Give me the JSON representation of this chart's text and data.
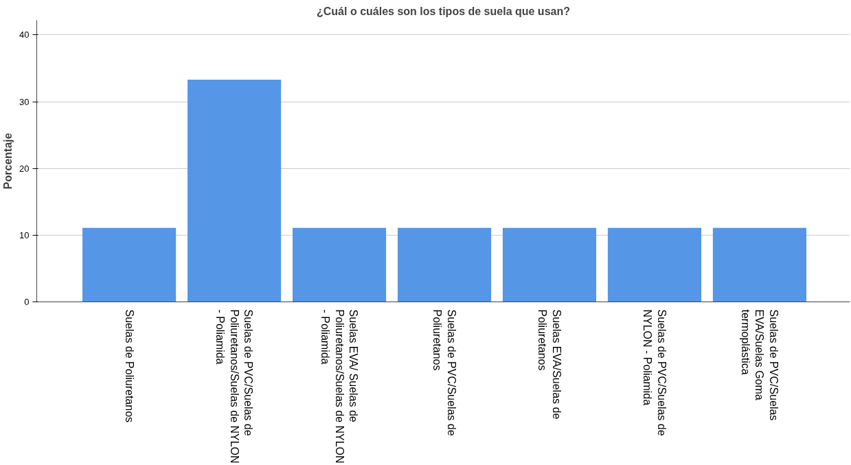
{
  "chart_data": {
    "type": "bar",
    "title": "¿Cuál o cuáles son los tipos de suela que usan?",
    "ylabel": "Porcentaje",
    "categories": [
      "Suelas de Poliuretanos",
      "Suelas de PVC/Suelas de Poliuretanos/Suelas de NYLON - Poliamida",
      "Suelas EVA/ Suelas de Poliuretanos/Suelas de NYLON - Poliamida",
      "Suelas de PVC/Suelas de Poliuretanos",
      "Suelas EVA/Suelas de Poliuretanos",
      "Suelas de PVC/Suelas de NYLON - Poliamida",
      "Suelas de PVC/Suelas EVA/Suelas Goma termoplástica"
    ],
    "values": [
      11.1,
      33.3,
      11.1,
      11.1,
      11.1,
      11.1,
      11.1
    ],
    "color": "#5596e6",
    "ylim": [
      0,
      42.2
    ],
    "yticks": [
      0,
      10,
      20,
      30,
      40
    ],
    "grid": "y"
  }
}
